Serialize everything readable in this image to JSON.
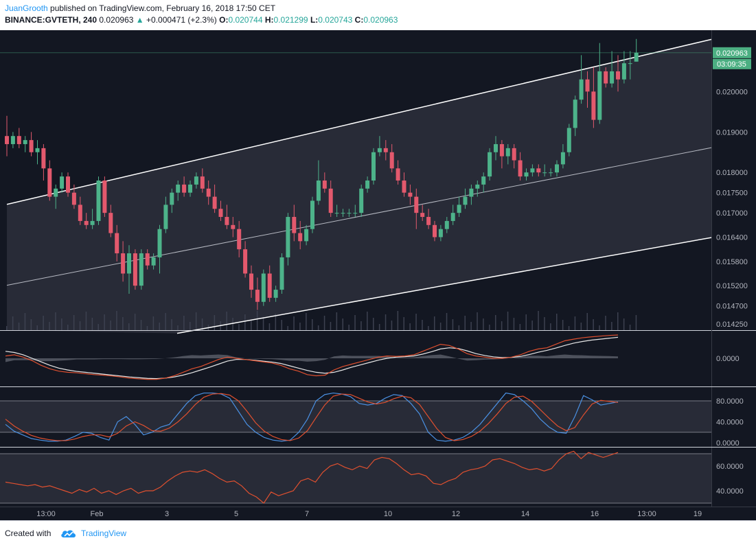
{
  "header": {
    "author": "JuanGrooth",
    "published": " published on TradingView.com, February 16, 2018 17:50 CET",
    "symbol": "BINANCE:GVTETH, 240",
    "last": "0.020963",
    "change_arrow": "▲",
    "change": "+0.000471 (+2.3%)",
    "o_label": "O:",
    "o_value": "0.020744",
    "h_label": "H:",
    "h_value": "0.021299",
    "l_label": "L:",
    "l_value": "0.020743",
    "c_label": "C:",
    "c_value": "0.020963"
  },
  "footer": {
    "created_with": "Created with",
    "brand": "TradingView",
    "brand_icon": "tradingview-cloud-icon"
  },
  "colors": {
    "background": "#131722",
    "up": "#4db38a",
    "down": "#e3596d",
    "blue": "#4a90e2",
    "orange": "#e0502f",
    "label_green": "#4caf82",
    "author": "#2196f3"
  },
  "chart_data": {
    "type": "candlestick",
    "price_scale_labels": [
      "0.020963",
      "0.020000",
      "0.019000",
      "0.018000",
      "0.017500",
      "0.017000",
      "0.016400",
      "0.015800",
      "0.015200",
      "0.014700",
      "0.014250"
    ],
    "last_price_label": "0.020963",
    "countdown_label": "03:09:35",
    "price_ylim": [
      0.0141,
      0.0215
    ],
    "time_labels": [
      "13:00",
      "Feb",
      "3",
      "5",
      "7",
      "10",
      "12",
      "14",
      "16",
      "13:00",
      "19"
    ],
    "candles": [
      [
        0.0189,
        0.0194,
        0.0184,
        0.0187
      ],
      [
        0.0187,
        0.019,
        0.0186,
        0.0189
      ],
      [
        0.0189,
        0.0191,
        0.0186,
        0.0187
      ],
      [
        0.0187,
        0.0189,
        0.0185,
        0.0188
      ],
      [
        0.0188,
        0.019,
        0.0184,
        0.0185
      ],
      [
        0.0185,
        0.0188,
        0.0182,
        0.0186
      ],
      [
        0.0186,
        0.0187,
        0.0178,
        0.0181
      ],
      [
        0.0181,
        0.0183,
        0.0173,
        0.0174
      ],
      [
        0.0174,
        0.0177,
        0.0171,
        0.0176
      ],
      [
        0.0176,
        0.018,
        0.0175,
        0.0179
      ],
      [
        0.0179,
        0.018,
        0.0174,
        0.0175
      ],
      [
        0.0175,
        0.0177,
        0.0171,
        0.0172
      ],
      [
        0.0172,
        0.0174,
        0.0167,
        0.0168
      ],
      [
        0.0168,
        0.017,
        0.0166,
        0.0167
      ],
      [
        0.0167,
        0.0171,
        0.0166,
        0.0168
      ],
      [
        0.0168,
        0.0179,
        0.0167,
        0.0178
      ],
      [
        0.0178,
        0.0179,
        0.0169,
        0.017
      ],
      [
        0.017,
        0.0172,
        0.0164,
        0.0165
      ],
      [
        0.0165,
        0.0167,
        0.0158,
        0.016
      ],
      [
        0.016,
        0.0163,
        0.0153,
        0.0155
      ],
      [
        0.0155,
        0.0162,
        0.015,
        0.016
      ],
      [
        0.016,
        0.0161,
        0.0151,
        0.0152
      ],
      [
        0.0152,
        0.0161,
        0.0151,
        0.016
      ],
      [
        0.016,
        0.0161,
        0.0156,
        0.0157
      ],
      [
        0.0157,
        0.016,
        0.0156,
        0.0159
      ],
      [
        0.0159,
        0.0167,
        0.0155,
        0.0166
      ],
      [
        0.0166,
        0.0174,
        0.0165,
        0.0172
      ],
      [
        0.0172,
        0.0176,
        0.017,
        0.0175
      ],
      [
        0.0175,
        0.0178,
        0.0173,
        0.0177
      ],
      [
        0.0177,
        0.0179,
        0.0174,
        0.0175
      ],
      [
        0.0175,
        0.0178,
        0.0174,
        0.0177
      ],
      [
        0.0177,
        0.018,
        0.0176,
        0.0179
      ],
      [
        0.0179,
        0.0181,
        0.0175,
        0.0176
      ],
      [
        0.0176,
        0.0178,
        0.0172,
        0.0174
      ],
      [
        0.0174,
        0.0177,
        0.017,
        0.0171
      ],
      [
        0.0171,
        0.0173,
        0.0168,
        0.0169
      ],
      [
        0.0169,
        0.0172,
        0.0166,
        0.0167
      ],
      [
        0.0167,
        0.0169,
        0.0164,
        0.0166
      ],
      [
        0.0166,
        0.0168,
        0.0159,
        0.0161
      ],
      [
        0.0161,
        0.0163,
        0.0154,
        0.0155
      ],
      [
        0.0155,
        0.0157,
        0.0149,
        0.0151
      ],
      [
        0.0151,
        0.0154,
        0.0146,
        0.0148
      ],
      [
        0.0148,
        0.0156,
        0.0147,
        0.0155
      ],
      [
        0.0155,
        0.0157,
        0.0148,
        0.0149
      ],
      [
        0.0149,
        0.0152,
        0.0148,
        0.0151
      ],
      [
        0.0151,
        0.016,
        0.015,
        0.0159
      ],
      [
        0.0159,
        0.017,
        0.0157,
        0.0169
      ],
      [
        0.0169,
        0.0172,
        0.0163,
        0.0165
      ],
      [
        0.0165,
        0.0168,
        0.0161,
        0.0163
      ],
      [
        0.0163,
        0.0167,
        0.0162,
        0.0166
      ],
      [
        0.0166,
        0.0174,
        0.0165,
        0.0173
      ],
      [
        0.0173,
        0.0183,
        0.0172,
        0.0178
      ],
      [
        0.0178,
        0.018,
        0.0175,
        0.0176
      ],
      [
        0.0176,
        0.0178,
        0.0169,
        0.017
      ],
      [
        0.017,
        0.0172,
        0.0169,
        0.017
      ],
      [
        0.017,
        0.0171,
        0.0169,
        0.017
      ],
      [
        0.017,
        0.0171,
        0.0169,
        0.017
      ],
      [
        0.017,
        0.0172,
        0.0169,
        0.017
      ],
      [
        0.017,
        0.0177,
        0.0169,
        0.0176
      ],
      [
        0.0176,
        0.0179,
        0.0175,
        0.0178
      ],
      [
        0.0178,
        0.0186,
        0.0177,
        0.0185
      ],
      [
        0.0185,
        0.0189,
        0.0184,
        0.0186
      ],
      [
        0.0186,
        0.0188,
        0.0183,
        0.0185
      ],
      [
        0.0185,
        0.0187,
        0.018,
        0.0181
      ],
      [
        0.0181,
        0.0183,
        0.0177,
        0.0178
      ],
      [
        0.0178,
        0.018,
        0.0174,
        0.0175
      ],
      [
        0.0175,
        0.0177,
        0.0172,
        0.0174
      ],
      [
        0.0174,
        0.0176,
        0.0166,
        0.017
      ],
      [
        0.017,
        0.0172,
        0.0168,
        0.0169
      ],
      [
        0.0169,
        0.0171,
        0.0166,
        0.0167
      ],
      [
        0.0167,
        0.0168,
        0.0163,
        0.0164
      ],
      [
        0.0164,
        0.0167,
        0.0163,
        0.0166
      ],
      [
        0.0166,
        0.0169,
        0.0165,
        0.0168
      ],
      [
        0.0168,
        0.0172,
        0.0167,
        0.017
      ],
      [
        0.017,
        0.0174,
        0.0169,
        0.0172
      ],
      [
        0.0172,
        0.0176,
        0.0171,
        0.0174
      ],
      [
        0.0174,
        0.0177,
        0.0172,
        0.0176
      ],
      [
        0.0176,
        0.0178,
        0.0174,
        0.0177
      ],
      [
        0.0177,
        0.018,
        0.0175,
        0.0179
      ],
      [
        0.0179,
        0.0186,
        0.0178,
        0.0185
      ],
      [
        0.0185,
        0.0189,
        0.0183,
        0.0187
      ],
      [
        0.0187,
        0.0188,
        0.0181,
        0.0184
      ],
      [
        0.0184,
        0.0187,
        0.0182,
        0.0186
      ],
      [
        0.0186,
        0.0187,
        0.0181,
        0.0183
      ],
      [
        0.0183,
        0.0185,
        0.0178,
        0.0179
      ],
      [
        0.0179,
        0.0181,
        0.0178,
        0.018
      ],
      [
        0.018,
        0.0182,
        0.0179,
        0.0181
      ],
      [
        0.0181,
        0.0182,
        0.0179,
        0.018
      ],
      [
        0.018,
        0.0182,
        0.0179,
        0.018
      ],
      [
        0.018,
        0.0181,
        0.0179,
        0.018
      ],
      [
        0.018,
        0.0183,
        0.0179,
        0.0182
      ],
      [
        0.0182,
        0.0187,
        0.0181,
        0.0185
      ],
      [
        0.0185,
        0.0192,
        0.0184,
        0.0191
      ],
      [
        0.0191,
        0.0199,
        0.0189,
        0.0198
      ],
      [
        0.0198,
        0.0209,
        0.0197,
        0.0203
      ],
      [
        0.0203,
        0.0205,
        0.0196,
        0.02
      ],
      [
        0.02,
        0.0206,
        0.0191,
        0.0193
      ],
      [
        0.0193,
        0.0212,
        0.0192,
        0.0205
      ],
      [
        0.0205,
        0.0206,
        0.0201,
        0.0202
      ],
      [
        0.0202,
        0.021,
        0.0201,
        0.0205
      ],
      [
        0.0205,
        0.0209,
        0.02,
        0.0203
      ],
      [
        0.0203,
        0.021,
        0.0202,
        0.0207
      ],
      [
        0.0207,
        0.021,
        0.0203,
        0.0207
      ],
      [
        0.02074,
        0.0213,
        0.02074,
        0.02096
      ]
    ],
    "macd_label": "0.0000",
    "macd_line": [
      0.1,
      0.15,
      0.05,
      -0.1,
      -0.3,
      -0.45,
      -0.55,
      -0.6,
      -0.62,
      -0.66,
      -0.7,
      -0.72,
      -0.76,
      -0.8,
      -0.85,
      -0.88,
      -0.9,
      -0.9,
      -0.85,
      -0.75,
      -0.6,
      -0.45,
      -0.35,
      -0.2,
      -0.05,
      0.05,
      0.0,
      -0.05,
      -0.1,
      -0.15,
      -0.2,
      -0.3,
      -0.45,
      -0.55,
      -0.7,
      -0.75,
      -0.72,
      -0.5,
      -0.35,
      -0.25,
      -0.15,
      -0.05,
      0.05,
      0.1,
      0.08,
      0.1,
      0.15,
      0.3,
      0.45,
      0.6,
      0.55,
      0.4,
      0.2,
      0.1,
      0.05,
      0.0,
      0.0,
      0.05,
      0.15,
      0.3,
      0.4,
      0.45,
      0.6,
      0.75,
      0.82,
      0.88,
      0.92,
      0.95,
      0.98,
      1.0
    ],
    "signal_line": [
      0.3,
      0.25,
      0.15,
      0.0,
      -0.15,
      -0.3,
      -0.42,
      -0.5,
      -0.56,
      -0.6,
      -0.64,
      -0.68,
      -0.72,
      -0.76,
      -0.8,
      -0.83,
      -0.86,
      -0.87,
      -0.85,
      -0.8,
      -0.72,
      -0.62,
      -0.5,
      -0.38,
      -0.25,
      -0.12,
      -0.05,
      -0.05,
      -0.08,
      -0.12,
      -0.16,
      -0.22,
      -0.32,
      -0.42,
      -0.52,
      -0.6,
      -0.64,
      -0.6,
      -0.5,
      -0.38,
      -0.28,
      -0.18,
      -0.08,
      0.0,
      0.05,
      0.07,
      0.1,
      0.18,
      0.28,
      0.4,
      0.45,
      0.42,
      0.32,
      0.2,
      0.12,
      0.06,
      0.03,
      0.04,
      0.08,
      0.16,
      0.26,
      0.34,
      0.44,
      0.55,
      0.65,
      0.72,
      0.78,
      0.82,
      0.86,
      0.9
    ],
    "macd_histogram": [
      -0.2,
      -0.1,
      -0.1,
      -0.1,
      -0.15,
      -0.15,
      -0.13,
      -0.1,
      -0.06,
      -0.06,
      -0.06,
      -0.04,
      -0.04,
      -0.04,
      -0.05,
      -0.05,
      -0.04,
      -0.03,
      0.0,
      0.05,
      0.12,
      0.17,
      0.15,
      0.18,
      0.2,
      0.17,
      0.05,
      0.0,
      -0.02,
      -0.03,
      -0.04,
      -0.08,
      -0.13,
      -0.13,
      -0.18,
      -0.15,
      -0.08,
      0.1,
      0.15,
      0.13,
      0.13,
      0.13,
      0.13,
      0.1,
      0.03,
      0.03,
      0.05,
      0.12,
      0.17,
      0.2,
      0.1,
      -0.02,
      -0.12,
      -0.1,
      -0.07,
      -0.06,
      -0.03,
      0.01,
      0.07,
      0.14,
      0.14,
      0.11,
      0.16,
      0.2,
      0.17,
      0.16,
      0.14,
      0.13,
      0.12,
      0.1
    ],
    "stoch_labels": [
      "80.0000",
      "40.0000",
      "0.0000"
    ],
    "stoch_k": [
      35,
      22,
      15,
      8,
      5,
      3,
      3,
      5,
      12,
      20,
      18,
      10,
      5,
      40,
      50,
      35,
      15,
      20,
      30,
      35,
      55,
      75,
      90,
      95,
      95,
      93,
      85,
      60,
      35,
      20,
      10,
      5,
      3,
      5,
      20,
      45,
      80,
      92,
      95,
      93,
      88,
      75,
      72,
      75,
      85,
      92,
      90,
      75,
      55,
      20,
      5,
      3,
      5,
      10,
      20,
      35,
      55,
      75,
      95,
      92,
      80,
      65,
      45,
      30,
      20,
      18,
      50,
      90,
      82,
      72,
      75,
      78
    ],
    "stoch_d": [
      45,
      32,
      22,
      14,
      9,
      6,
      4,
      4,
      7,
      12,
      15,
      15,
      11,
      18,
      32,
      40,
      33,
      23,
      22,
      28,
      40,
      55,
      73,
      87,
      93,
      94,
      91,
      80,
      60,
      38,
      22,
      12,
      6,
      4,
      9,
      23,
      48,
      72,
      89,
      93,
      92,
      85,
      78,
      74,
      77,
      84,
      89,
      86,
      73,
      50,
      27,
      10,
      4,
      6,
      12,
      22,
      37,
      55,
      75,
      87,
      89,
      79,
      63,
      47,
      32,
      23,
      29,
      53,
      74,
      81,
      79,
      77
    ],
    "rsi_labels": [
      "60.0000",
      "40.0000"
    ],
    "rsi": [
      47,
      46,
      45,
      44,
      45,
      43,
      44,
      42,
      40,
      38,
      41,
      39,
      42,
      38,
      40,
      37,
      40,
      42,
      38,
      40,
      40,
      43,
      48,
      52,
      55,
      56,
      55,
      57,
      54,
      50,
      47,
      48,
      44,
      38,
      35,
      30,
      39,
      36,
      38,
      40,
      48,
      50,
      47,
      55,
      60,
      62,
      59,
      57,
      60,
      58,
      65,
      67,
      66,
      62,
      57,
      53,
      54,
      52,
      46,
      45,
      48,
      50,
      55,
      57,
      58,
      60,
      65,
      66,
      64,
      62,
      59,
      57,
      58,
      56,
      58,
      65,
      70,
      72,
      66,
      71,
      69,
      67,
      69,
      71
    ],
    "channel_upper": [
      [
        0,
        0.01721
      ],
      [
        102,
        0.02082
      ]
    ],
    "channel_mid": [
      [
        0,
        0.01521
      ],
      [
        102,
        0.01822
      ]
    ],
    "channel_lower": [
      [
        33,
        0.01416
      ],
      [
        102,
        0.01603
      ]
    ]
  }
}
